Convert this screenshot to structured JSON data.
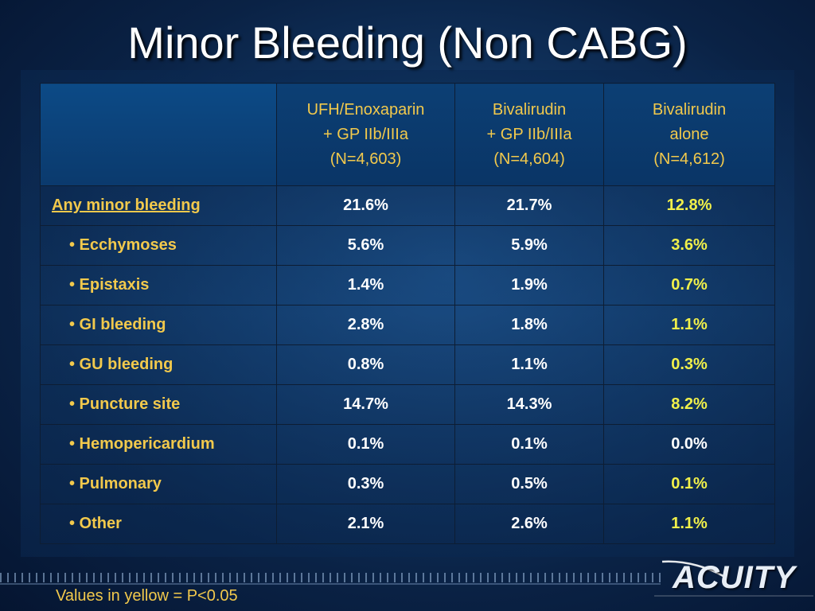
{
  "slide": {
    "title": "Minor Bleeding (Non CABG)",
    "footnote": "Values in yellow = P<0.05",
    "logo_text": "ACUITY"
  },
  "table": {
    "columns": [
      {
        "line1": "UFH/Enoxaparin",
        "line2": "+ GP IIb/IIIa",
        "line3": "(N=4,603)"
      },
      {
        "line1": "Bivalirudin",
        "line2": "+ GP IIb/IIIa",
        "line3": "(N=4,604)"
      },
      {
        "line1": "Bivalirudin",
        "line2": "alone",
        "line3": "(N=4,612)"
      }
    ],
    "rows": [
      {
        "label": "Any minor bleeding",
        "values": [
          "21.6%",
          "21.7%",
          "12.8%"
        ]
      },
      {
        "label": "• Ecchymoses",
        "values": [
          "5.6%",
          "5.9%",
          "3.6%"
        ]
      },
      {
        "label": "• Epistaxis",
        "values": [
          "1.4%",
          "1.9%",
          "0.7%"
        ]
      },
      {
        "label": "• GI bleeding",
        "values": [
          "2.8%",
          "1.8%",
          "1.1%"
        ]
      },
      {
        "label": "• GU bleeding",
        "values": [
          "0.8%",
          "1.1%",
          "0.3%"
        ]
      },
      {
        "label": "• Puncture site",
        "values": [
          "14.7%",
          "14.3%",
          "8.2%"
        ]
      },
      {
        "label": "• Hemopericardium",
        "values": [
          "0.1%",
          "0.1%",
          "0.0%"
        ]
      },
      {
        "label": "• Pulmonary",
        "values": [
          "0.3%",
          "0.5%",
          "0.1%"
        ]
      },
      {
        "label": "• Other",
        "values": [
          "2.1%",
          "2.6%",
          "1.1%"
        ]
      }
    ]
  },
  "colors": {
    "label_yellow": "#f2c94c",
    "significant_yellow": "#f1f04a",
    "value_white": "#ffffff"
  }
}
